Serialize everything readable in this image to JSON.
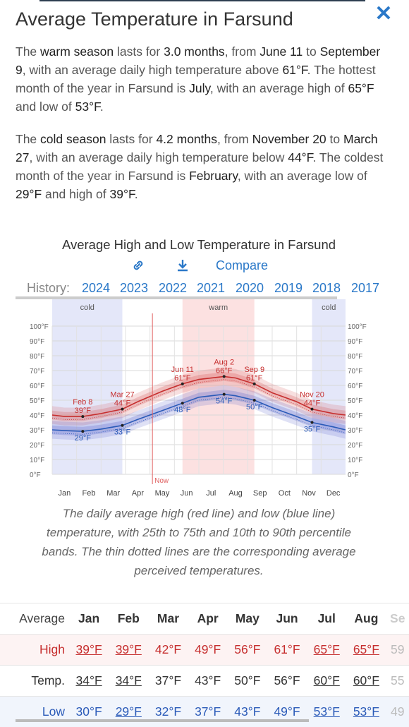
{
  "header": {
    "title": "Average Temperature in Farsund",
    "close_label": "✕"
  },
  "warm_para": {
    "t1": "The ",
    "warm": "warm season",
    "t2": " lasts for ",
    "dur": "3.0 months",
    "t3": ", from ",
    "from": "June 11",
    "t4": " to ",
    "to": "September 9",
    "t5": ", with an average daily high temperature above ",
    "thr": "61°F",
    "t6": ". The hottest month of the year in Farsund is ",
    "month": "July",
    "t7": ", with an average high of ",
    "high": "65°F",
    "t8": " and low of ",
    "low": "53°F",
    "t9": "."
  },
  "cold_para": {
    "t1": "The ",
    "cold": "cold season",
    "t2": " lasts for ",
    "dur": "4.2 months",
    "t3": ", from ",
    "from": "November 20",
    "t4": " to ",
    "to": "March 27",
    "t5": ", with an average daily high temperature below ",
    "thr": "44°F",
    "t6": ". The coldest month of the year in Farsund is ",
    "month": "February",
    "t7": ", with an average low of ",
    "low": "29°F",
    "t8": " and high of ",
    "high": "39°F",
    "t9": "."
  },
  "chart_section": {
    "title": "Average High and Low Temperature in Farsund",
    "compare_label": "Compare",
    "history_label": "History:",
    "years": [
      "2024",
      "2023",
      "2022",
      "2021",
      "2020",
      "2019",
      "2018",
      "2017"
    ]
  },
  "chart_data": {
    "type": "line",
    "title": "Average High and Low Temperature in Farsund",
    "x_ticks": [
      "Jan",
      "Feb",
      "Mar",
      "Apr",
      "May",
      "Jun",
      "Jul",
      "Aug",
      "Sep",
      "Oct",
      "Nov",
      "Dec"
    ],
    "y_ticks": [
      "100°F",
      "90°F",
      "80°F",
      "70°F",
      "60°F",
      "50°F",
      "40°F",
      "30°F",
      "20°F",
      "10°F",
      "0°F"
    ],
    "ylim": [
      0,
      100
    ],
    "season_labels": {
      "cold": "cold",
      "warm": "warm"
    },
    "seasons": [
      {
        "name": "cold",
        "from": 0,
        "to": 2.87
      },
      {
        "name": "warm",
        "from": 5.33,
        "to": 8.27
      },
      {
        "name": "cold",
        "from": 10.63,
        "to": 12
      }
    ],
    "now_label": "Now",
    "now_x": 4.1,
    "series": [
      {
        "name": "High",
        "color": "#c62e2e",
        "x": [
          0,
          0.5,
          1.25,
          2,
          2.87,
          3.5,
          4.5,
          5.33,
          6,
          7.03,
          7.5,
          8.27,
          9,
          10,
          10.63,
          11.5,
          12
        ],
        "y": [
          40,
          39,
          39,
          41,
          44,
          49,
          56,
          61,
          64,
          66,
          65,
          61,
          55,
          49,
          44,
          41,
          40
        ]
      },
      {
        "name": "Low",
        "color": "#2a5ab8",
        "x": [
          0,
          0.5,
          1.25,
          2,
          2.87,
          3.5,
          4.5,
          5.33,
          6,
          7.03,
          7.5,
          8.27,
          9,
          10,
          10.63,
          11.5,
          12
        ],
        "y": [
          30,
          29.5,
          29,
          30.5,
          33,
          37,
          43,
          48,
          52,
          54,
          53,
          50,
          45,
          39,
          35,
          32,
          30
        ]
      }
    ],
    "annotations": [
      {
        "date": "Feb 8",
        "value": "39°F",
        "series": "High",
        "x": 1.25,
        "y": 39
      },
      {
        "date": "",
        "value": "29°F",
        "series": "Low",
        "x": 1.25,
        "y": 29
      },
      {
        "date": "Mar 27",
        "value": "44°F",
        "series": "High",
        "x": 2.87,
        "y": 44
      },
      {
        "date": "",
        "value": "33°F",
        "series": "Low",
        "x": 2.87,
        "y": 33
      },
      {
        "date": "Jun 11",
        "value": "61°F",
        "series": "High",
        "x": 5.33,
        "y": 61
      },
      {
        "date": "",
        "value": "48°F",
        "series": "Low",
        "x": 5.33,
        "y": 48
      },
      {
        "date": "Aug 2",
        "value": "66°F",
        "series": "High",
        "x": 7.03,
        "y": 66
      },
      {
        "date": "",
        "value": "54°F",
        "series": "Low",
        "x": 7.03,
        "y": 54
      },
      {
        "date": "Sep 9",
        "value": "61°F",
        "series": "High",
        "x": 8.27,
        "y": 61
      },
      {
        "date": "",
        "value": "50°F",
        "series": "Low",
        "x": 8.27,
        "y": 50
      },
      {
        "date": "Nov 20",
        "value": "44°F",
        "series": "High",
        "x": 10.63,
        "y": 44
      },
      {
        "date": "",
        "value": "35°F",
        "series": "Low",
        "x": 10.63,
        "y": 35
      }
    ]
  },
  "caption": "The daily average high (red line) and low (blue line) temperature, with 25th to 75th and 10th to 90th percentile bands. The thin dotted lines are the corresponding average perceived temperatures.",
  "table": {
    "head": [
      "Average",
      "Jan",
      "Feb",
      "Mar",
      "Apr",
      "May",
      "Jun",
      "Jul",
      "Aug",
      "Se"
    ],
    "high": [
      "High",
      "39°F",
      "39°F",
      "42°F",
      "49°F",
      "56°F",
      "61°F",
      "65°F",
      "65°F",
      "59"
    ],
    "temp": [
      "Temp.",
      "34°F",
      "34°F",
      "37°F",
      "43°F",
      "50°F",
      "56°F",
      "60°F",
      "60°F",
      "55"
    ],
    "low": [
      "Low",
      "30°F",
      "29°F",
      "32°F",
      "37°F",
      "43°F",
      "49°F",
      "53°F",
      "53°F",
      "49"
    ]
  }
}
